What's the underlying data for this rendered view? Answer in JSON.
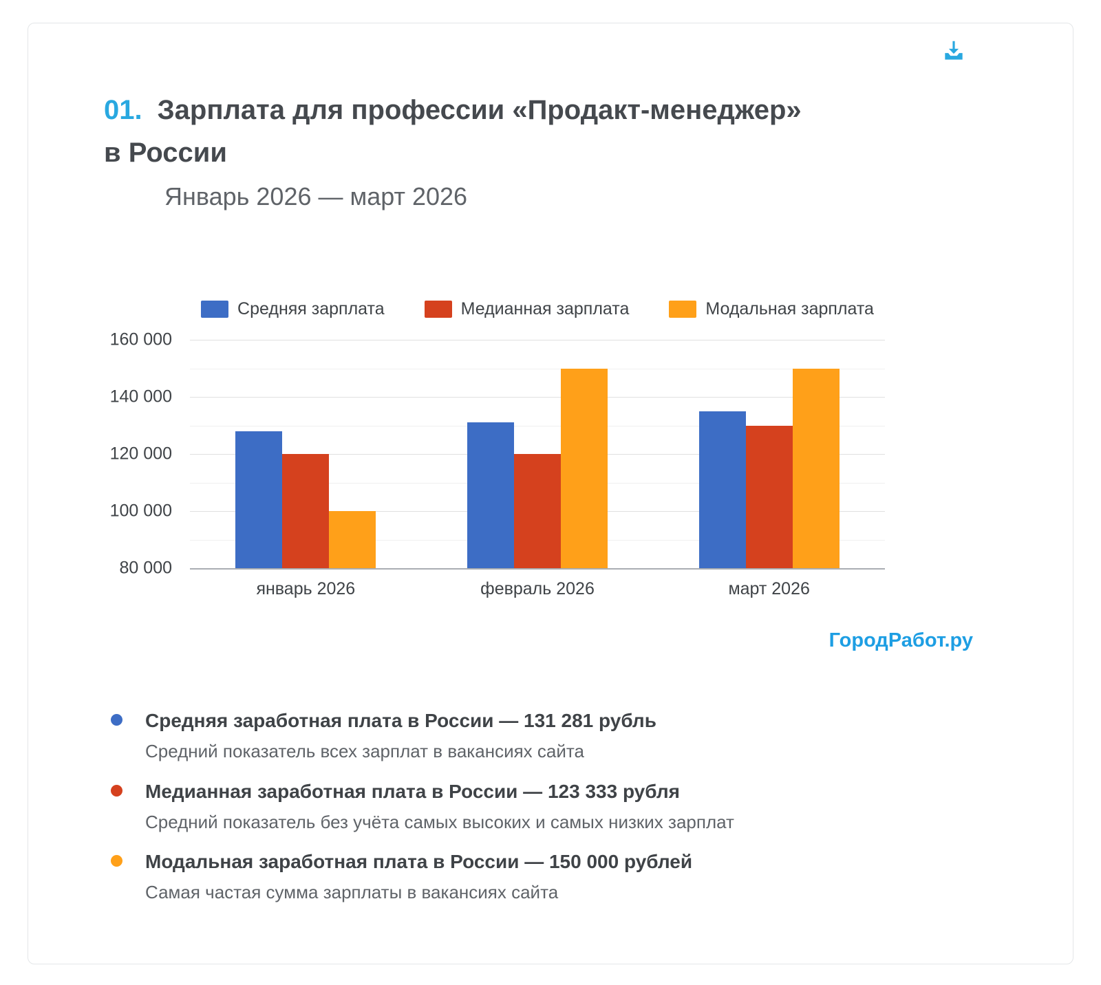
{
  "page": {
    "section_number": "01.",
    "title_line1": "Зарплата для профессии «Продакт-менеджер»",
    "title_line2": "в России",
    "subtitle": "Январь 2026 — март 2026",
    "brand_link": "ГородРабот.ру"
  },
  "colors": {
    "accent_blue": "#29a8e0",
    "brand_link_blue": "#1d9ee3",
    "series_average": "#3d6dc5",
    "series_median": "#d5411e",
    "series_mode": "#ffa019",
    "title_text": "#45494e",
    "body_text": "#3f4347",
    "muted_text": "#5f6368"
  },
  "chart_data": {
    "type": "bar",
    "title": "Зарплата для профессии «Продакт-менеджер» в России",
    "subtitle": "Январь 2026 — март 2026",
    "categories": [
      "январь 2026",
      "февраль 2026",
      "март 2026"
    ],
    "series": [
      {
        "id": "average",
        "name": "Средняя зарплата",
        "color": "#3d6dc5",
        "values": [
          128000,
          131000,
          135000
        ]
      },
      {
        "id": "median",
        "name": "Медианная зарплата",
        "color": "#d5411e",
        "values": [
          120000,
          120000,
          130000
        ]
      },
      {
        "id": "mode",
        "name": "Модальная зарплата",
        "color": "#ffa019",
        "values": [
          100000,
          150000,
          150000
        ]
      }
    ],
    "ylim": [
      80000,
      160000
    ],
    "ytick_step": 20000,
    "ygrid_minor_step": 10000,
    "ytick_labels": [
      "80 000",
      "100 000",
      "120 000",
      "140 000",
      "160 000"
    ],
    "grid": true,
    "legend_position": "top"
  },
  "footer_notes": [
    {
      "series_id": "average",
      "color": "#3d6dc5",
      "title": "Средняя заработная плата в России — 131 281 рубль",
      "description": "Средний показатель всех зарплат в вакансиях сайта"
    },
    {
      "series_id": "median",
      "color": "#d5411e",
      "title": "Медианная заработная плата в России — 123 333 рубля",
      "description": "Средний показатель без учёта самых высоких и самых низких зарплат"
    },
    {
      "series_id": "mode",
      "color": "#ffa019",
      "title": "Модальная заработная плата в России — 150 000 рублей",
      "description": "Самая частая сумма зарплаты в вакансиях сайта"
    }
  ]
}
